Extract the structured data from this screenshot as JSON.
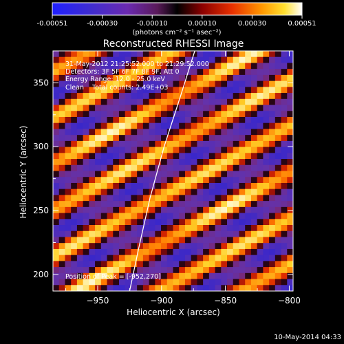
{
  "colorbar": {
    "ticks": [
      "-0.00051",
      "-0.00030",
      "-0.00010",
      "0.00010",
      "0.00030",
      "0.00051"
    ],
    "unit_label": "(photons cm⁻² s⁻¹ asec⁻²)"
  },
  "chart_data": {
    "type": "heatmap",
    "title": "Reconstructed RHESSI Image",
    "xlabel": "Heliocentric X (arcsec)",
    "ylabel": "Heliocentric Y (arcsec)",
    "xlim": [
      -985,
      -797
    ],
    "ylim": [
      187,
      375
    ],
    "x_ticks": [
      -950,
      -900,
      -850,
      -800
    ],
    "y_ticks": [
      200,
      250,
      300,
      350
    ],
    "colormap": "rainbow-fire (blue-purple-red-orange-yellow-white)",
    "color_range": [
      -0.00051,
      0.00051
    ],
    "pattern": "diagonal bright fringes running lower-left to upper-right, alternating with purple/blue troughs",
    "limb": {
      "description": "solar limb arc",
      "color": "#ffffff",
      "points": [
        [
          -925,
          187
        ],
        [
          -918,
          220
        ],
        [
          -909,
          260
        ],
        [
          -898,
          300
        ],
        [
          -885,
          340
        ],
        [
          -874,
          375
        ]
      ]
    },
    "peak": [
      -952,
      270
    ],
    "annotations": [
      "31-May-2012 21:25:52.000 to 21:29:52.000",
      "Detectors: 3F 5F 6F 7F 8F 9F, Att 0",
      "Energy Range: 12.0 - 25.0 keV",
      "Clean    Total counts: 2.49E+03"
    ],
    "peak_label": "Position of Peak = [-952,270]"
  },
  "footer_timestamp": "10-May-2014 04:33"
}
